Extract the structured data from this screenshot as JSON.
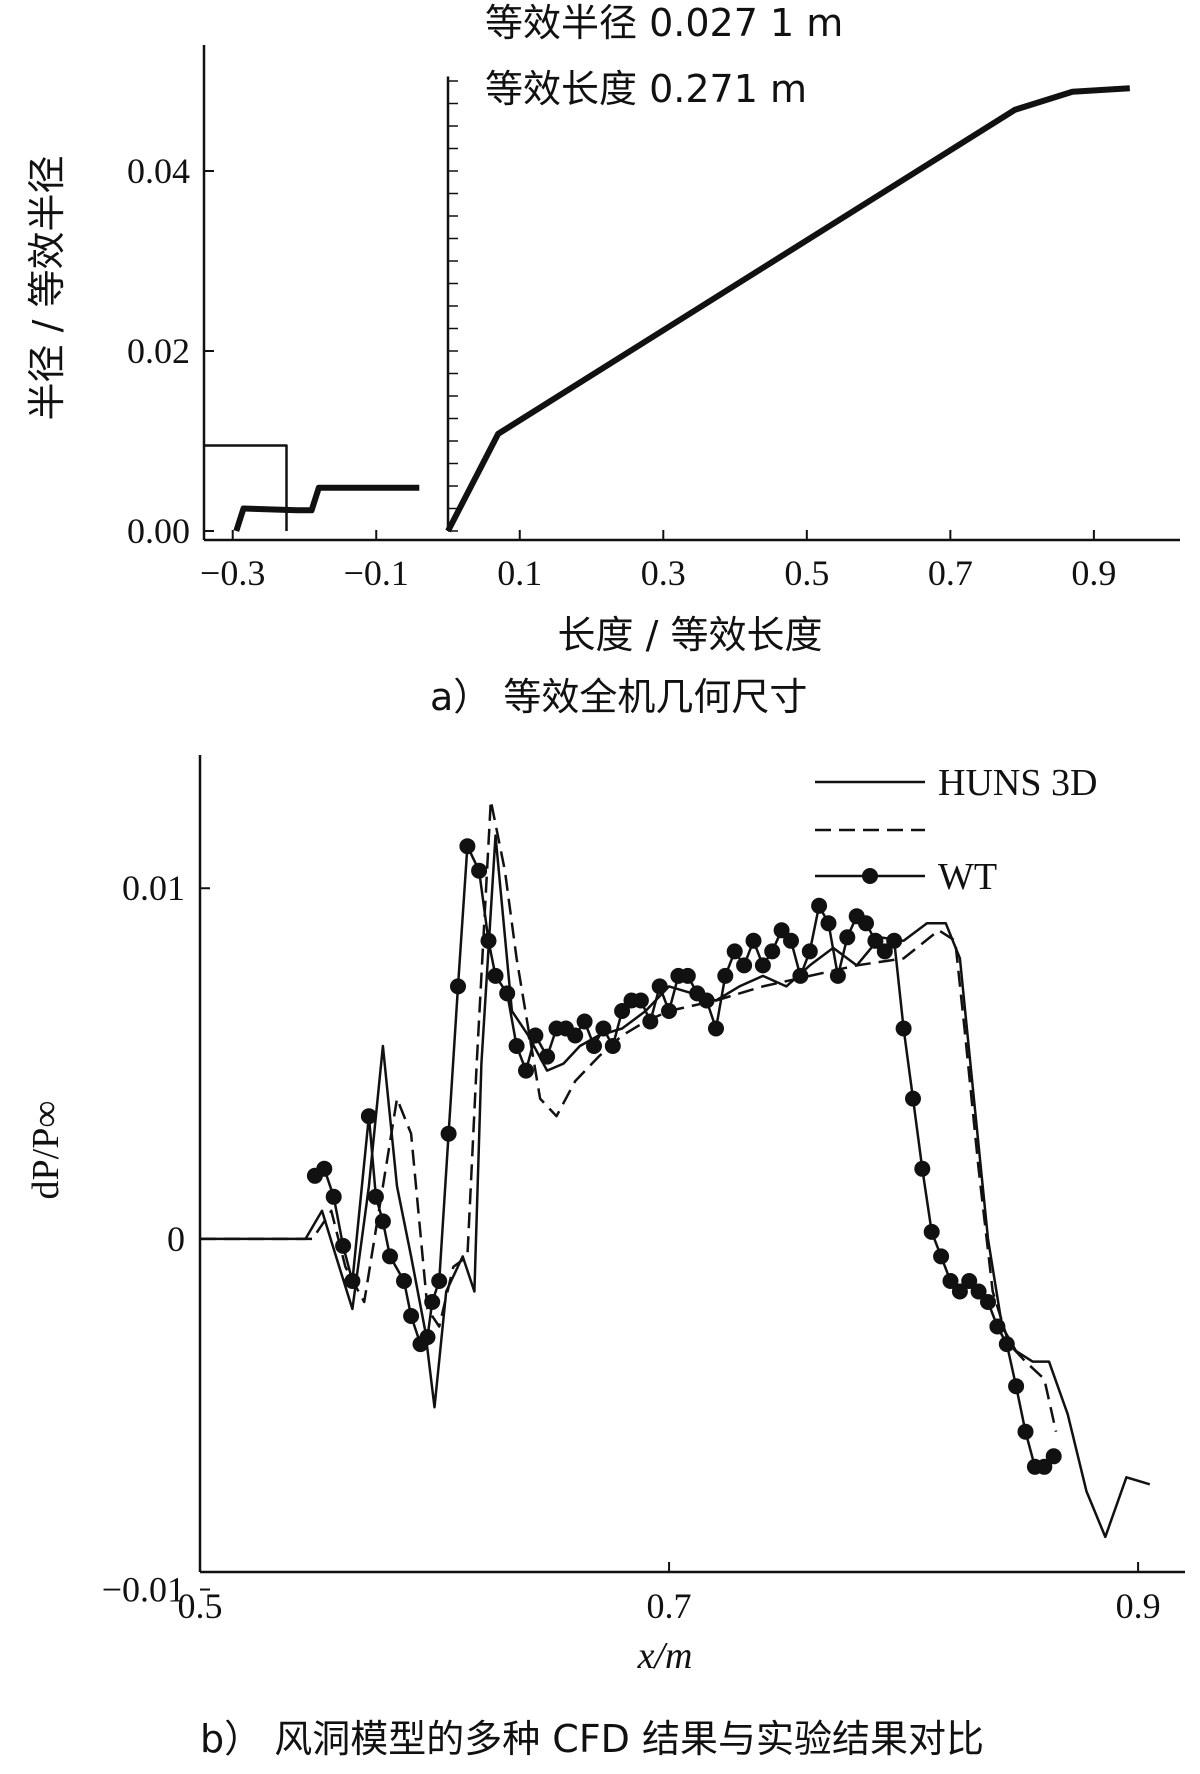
{
  "chart_data": [
    {
      "type": "line",
      "caption": "a） 等效全机几何尺寸",
      "xlabel": "长度 / 等效长度",
      "ylabel": "半径 / 等效半径",
      "xlim": [
        -0.34,
        1.02
      ],
      "ylim": [
        -0.001,
        0.054
      ],
      "xticks": [
        -0.3,
        -0.1,
        0.1,
        0.3,
        0.5,
        0.7,
        0.9
      ],
      "xtick_labels": [
        "−0.3",
        "−0.1",
        "0.1",
        "0.3",
        "0.5",
        "0.7",
        "0.9"
      ],
      "yticks": [
        0.0,
        0.02,
        0.04
      ],
      "ytick_labels": [
        "0.00",
        "0.02",
        "0.04"
      ],
      "annotations": [
        "等效半径 0.027 1 m",
        "等效长度 0.271 m"
      ],
      "series": [
        {
          "style": "thin",
          "x": [
            -0.34,
            -0.225,
            -0.225
          ],
          "y": [
            0.0095,
            0.0095,
            0.0
          ]
        },
        {
          "style": "thick",
          "x": [
            -0.295,
            -0.285,
            -0.21,
            -0.19,
            -0.18,
            -0.04
          ],
          "y": [
            0.0,
            0.0025,
            0.0023,
            0.0023,
            0.0048,
            0.0048
          ]
        },
        {
          "style": "thin",
          "x": [
            0.0,
            0.0
          ],
          "y": [
            0.0,
            0.0505
          ]
        },
        {
          "style": "thick",
          "x": [
            0.0,
            0.07,
            0.79,
            0.87,
            0.95
          ],
          "y": [
            0.0,
            0.0108,
            0.0468,
            0.0488,
            0.0492
          ]
        }
      ]
    },
    {
      "type": "line",
      "caption": "b） 风洞模型的多种 CFD 结果与实验结果对比",
      "xlabel": "x/m",
      "ylabel": "dP/P∞",
      "xlim": [
        0.5,
        0.92
      ],
      "ylim": [
        -0.0095,
        0.0138
      ],
      "xticks": [
        0.5,
        0.7,
        0.9
      ],
      "xtick_labels": [
        "0.5",
        "0.7",
        "0.9"
      ],
      "yticks": [
        -0.01,
        0.0,
        0.01
      ],
      "ytick_labels": [
        "−0.01",
        "0",
        "0.01"
      ],
      "legend": [
        {
          "label": "HUNS 3D",
          "style": "solid"
        },
        {
          "label": "",
          "style": "dashed"
        },
        {
          "label": "WT",
          "style": "marker"
        }
      ],
      "series": [
        {
          "name": "HUNS 3D",
          "style": "solid",
          "x": [
            0.5,
            0.545,
            0.552,
            0.558,
            0.565,
            0.572,
            0.578,
            0.584,
            0.59,
            0.596,
            0.6,
            0.605,
            0.612,
            0.617,
            0.62,
            0.626,
            0.633,
            0.64,
            0.648,
            0.655,
            0.662,
            0.67,
            0.68,
            0.69,
            0.7,
            0.71,
            0.72,
            0.73,
            0.74,
            0.75,
            0.76,
            0.77,
            0.78,
            0.79,
            0.8,
            0.81,
            0.818,
            0.824,
            0.83,
            0.836,
            0.842,
            0.848,
            0.855,
            0.862,
            0.87,
            0.878,
            0.886,
            0.895,
            0.905
          ],
          "y": [
            0.0,
            0.0,
            0.0008,
            -0.0005,
            -0.002,
            0.0015,
            0.0055,
            0.0015,
            -0.0005,
            -0.0026,
            -0.0048,
            -0.0015,
            -0.0005,
            -0.0015,
            0.005,
            0.0115,
            0.0065,
            0.0058,
            0.0048,
            0.005,
            0.0055,
            0.0058,
            0.006,
            0.0065,
            0.0072,
            0.007,
            0.0068,
            0.0072,
            0.0075,
            0.0072,
            0.0078,
            0.0083,
            0.0078,
            0.0086,
            0.0085,
            0.009,
            0.009,
            0.008,
            0.004,
            0.0,
            -0.0025,
            -0.0032,
            -0.0035,
            -0.0035,
            -0.005,
            -0.0072,
            -0.0085,
            -0.0068,
            -0.007
          ]
        },
        {
          "name": "",
          "style": "dashed",
          "x": [
            0.5,
            0.548,
            0.556,
            0.562,
            0.57,
            0.578,
            0.584,
            0.59,
            0.597,
            0.602,
            0.608,
            0.614,
            0.618,
            0.624,
            0.63,
            0.635,
            0.64,
            0.645,
            0.652,
            0.66,
            0.67,
            0.68,
            0.69,
            0.7,
            0.72,
            0.74,
            0.76,
            0.78,
            0.8,
            0.815,
            0.822,
            0.826,
            0.832,
            0.838,
            0.845,
            0.852,
            0.86,
            0.865
          ],
          "y": [
            0.0,
            0.0,
            0.0008,
            -0.0008,
            -0.0018,
            0.0015,
            0.004,
            0.003,
            -0.002,
            -0.0025,
            -0.0008,
            -0.0005,
            0.005,
            0.0125,
            0.0105,
            0.008,
            0.006,
            0.004,
            0.0035,
            0.0045,
            0.0052,
            0.0058,
            0.0062,
            0.0065,
            0.0068,
            0.0072,
            0.0075,
            0.0078,
            0.008,
            0.0088,
            0.0085,
            0.006,
            0.002,
            -0.0015,
            -0.003,
            -0.0035,
            -0.004,
            -0.0055
          ]
        }
      ],
      "markers": {
        "name": "WT",
        "x": [
          0.549,
          0.553,
          0.557,
          0.561,
          0.565,
          0.572,
          0.575,
          0.578,
          0.581,
          0.587,
          0.59,
          0.594,
          0.597,
          0.599,
          0.602,
          0.606,
          0.61,
          0.614,
          0.619,
          0.623,
          0.626,
          0.631,
          0.635,
          0.639,
          0.643,
          0.648,
          0.652,
          0.656,
          0.66,
          0.664,
          0.668,
          0.672,
          0.676,
          0.68,
          0.684,
          0.688,
          0.692,
          0.696,
          0.7,
          0.704,
          0.708,
          0.712,
          0.716,
          0.72,
          0.724,
          0.728,
          0.732,
          0.736,
          0.74,
          0.744,
          0.748,
          0.752,
          0.756,
          0.76,
          0.764,
          0.768,
          0.772,
          0.776,
          0.78,
          0.784,
          0.788,
          0.792,
          0.796,
          0.8,
          0.804,
          0.808,
          0.812,
          0.816,
          0.82,
          0.824,
          0.828,
          0.832,
          0.836,
          0.84,
          0.844,
          0.848,
          0.852,
          0.856,
          0.86,
          0.864
        ],
        "y": [
          0.0018,
          0.002,
          0.0012,
          -0.0002,
          -0.0012,
          0.0035,
          0.0012,
          0.0005,
          -0.0005,
          -0.0012,
          -0.0022,
          -0.003,
          -0.0028,
          -0.0018,
          -0.0012,
          0.003,
          0.0072,
          0.0112,
          0.0105,
          0.0085,
          0.0075,
          0.007,
          0.0055,
          0.0048,
          0.0058,
          0.0052,
          0.006,
          0.006,
          0.0058,
          0.0062,
          0.0055,
          0.006,
          0.0055,
          0.0065,
          0.0068,
          0.0068,
          0.0062,
          0.0072,
          0.0065,
          0.0075,
          0.0075,
          0.007,
          0.0068,
          0.006,
          0.0075,
          0.0082,
          0.0078,
          0.0085,
          0.0078,
          0.0082,
          0.0088,
          0.0085,
          0.0075,
          0.0082,
          0.0095,
          0.009,
          0.0075,
          0.0086,
          0.0092,
          0.009,
          0.0085,
          0.0082,
          0.0085,
          0.006,
          0.004,
          0.002,
          0.0002,
          -0.0005,
          -0.0012,
          -0.0015,
          -0.0012,
          -0.0015,
          -0.0018,
          -0.0025,
          -0.003,
          -0.0042,
          -0.0055,
          -0.0065,
          -0.0065,
          -0.0062
        ]
      }
    }
  ]
}
